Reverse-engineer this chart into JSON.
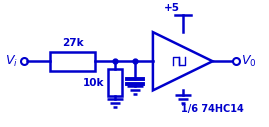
{
  "bg_color": "#ffffff",
  "line_color": "#0000cc",
  "text_color": "#0000cc",
  "line_width": 1.8,
  "fig_width": 2.69,
  "fig_height": 1.27,
  "dpi": 100,
  "r1_label": "27k",
  "r2_label": "10k",
  "vcc_label": "+5",
  "ic_label": "1/6 74HC14",
  "vi_label": "$V_i$",
  "vo_label": "$V_0$"
}
